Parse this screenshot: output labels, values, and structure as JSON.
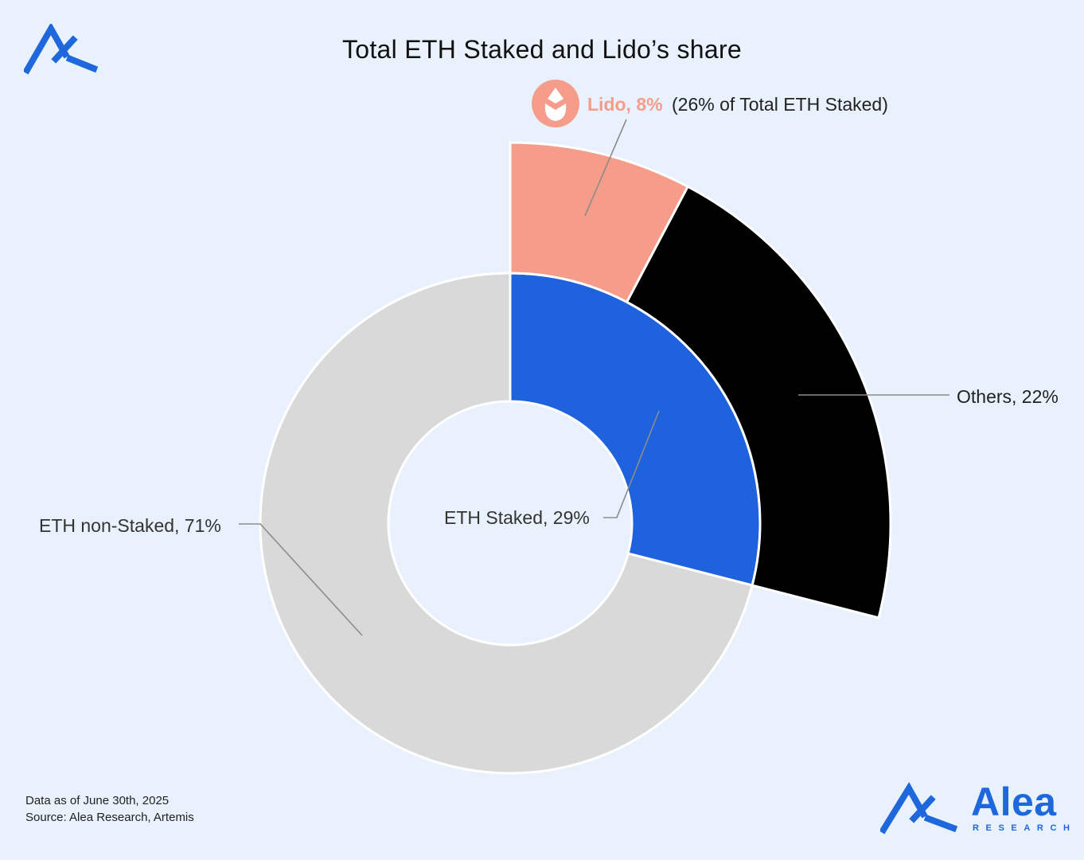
{
  "title": "Total ETH Staked and Lido’s share",
  "footnotes": {
    "date": "Data as of June 30th, 2025",
    "source": "Source: Alea Research, Artemis"
  },
  "brand": {
    "name": "Alea",
    "sub": "RESEARCH"
  },
  "colors": {
    "staked": "#1e62dd",
    "non_staked": "#d9d9d9",
    "lido": "#f59d8a",
    "others": "#000000",
    "brand": "#1e67dc",
    "leader": "#8c8c8c"
  },
  "chart_data": {
    "type": "pie",
    "title": "Total ETH Staked and Lido’s share",
    "inner_ring": {
      "name": "Total ETH",
      "slices": [
        {
          "label": "ETH Staked",
          "value": 29,
          "display": "ETH Staked, 29%"
        },
        {
          "label": "ETH non-Staked",
          "value": 71,
          "display": "ETH non-Staked, 71%"
        }
      ]
    },
    "outer_ring": {
      "name": "ETH Staked breakdown",
      "slices": [
        {
          "label": "Lido",
          "value": 8,
          "display": "Lido, 8%",
          "note": "(26% of Total ETH Staked)"
        },
        {
          "label": "Others",
          "value": 22,
          "display": "Others, 22%"
        }
      ]
    }
  }
}
